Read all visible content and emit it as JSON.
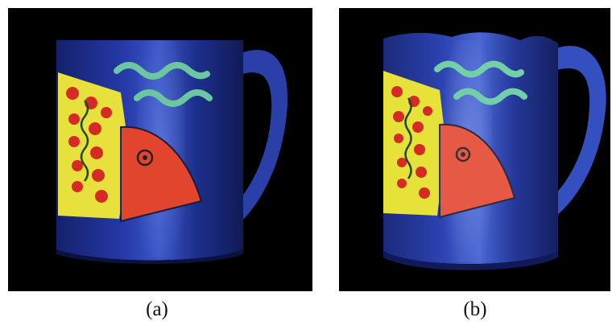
{
  "figure": {
    "panels": [
      {
        "caption": "(a)"
      },
      {
        "caption": "(b)"
      }
    ]
  },
  "colors": {
    "background": "#000000",
    "mug_blue": "#1c2f8f",
    "mug_highlight": "#5a74d8",
    "fish_yellow": "#e6e23a",
    "fish_red": "#e2452e",
    "spots": "#d52b22",
    "wave_green": "#69c49b"
  }
}
